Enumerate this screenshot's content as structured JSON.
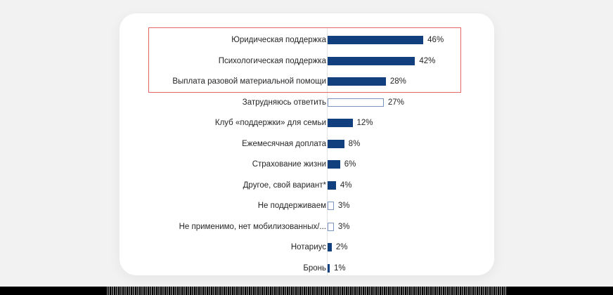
{
  "chart_data": {
    "type": "bar",
    "orientation": "horizontal",
    "title": "",
    "xlabel": "",
    "ylabel": "",
    "value_suffix": "%",
    "xlim": [
      0,
      50
    ],
    "grid": false,
    "legend": null,
    "categories": [
      "Юридическая поддержка",
      "Психологическая поддержка",
      "Выплата разовой материальной помощи",
      "Затрудняюсь ответить",
      "Клуб «поддержки» для семьи",
      "Ежемесячная доплата",
      "Страхование жизни",
      "Другое, свой вариант*",
      "Не поддерживаем",
      "Не применимо, нет мобилизованных/...",
      "Нотариус",
      "Бронь"
    ],
    "values": [
      46,
      42,
      28,
      27,
      12,
      8,
      6,
      4,
      3,
      3,
      2,
      1
    ],
    "labels": [
      "46%",
      "42%",
      "28%",
      "27%",
      "12%",
      "8%",
      "6%",
      "4%",
      "3%",
      "3%",
      "2%",
      "1%"
    ],
    "bar_style": [
      "filled",
      "filled",
      "filled",
      "outline",
      "filled",
      "filled",
      "filled",
      "filled",
      "outline",
      "outline",
      "filled",
      "filled"
    ],
    "annotations": [
      "Red rectangle highlights top 3 categories"
    ],
    "colors": {
      "bar": "#12407f",
      "outline_bar": "#7a95c0",
      "highlight_box": "#e06666"
    }
  }
}
